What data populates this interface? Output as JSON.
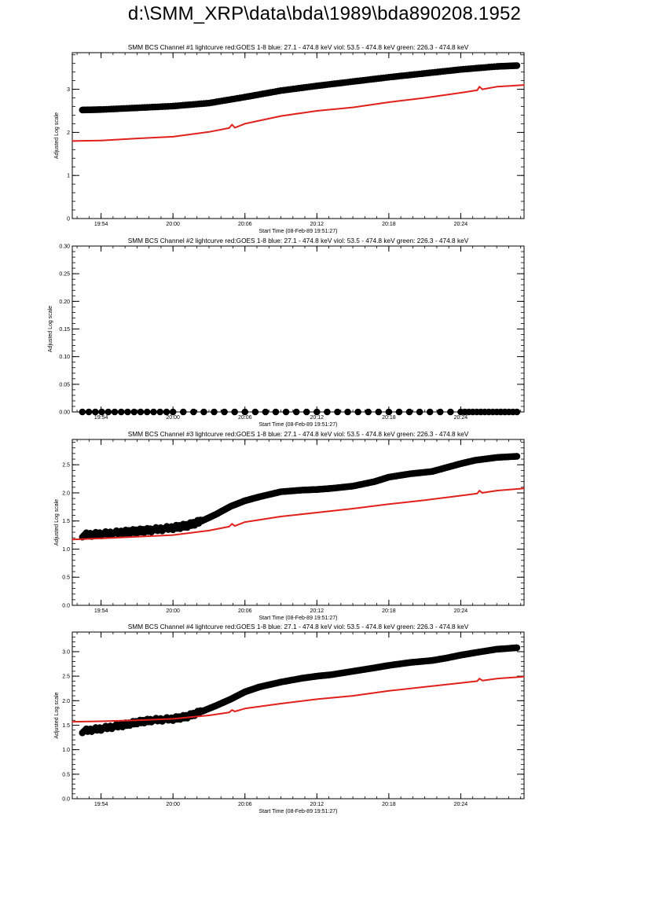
{
  "page": {
    "title": "d:\\SMM_XRP\\data\\bda\\1989\\bda890208.1952"
  },
  "colors": {
    "black_series": "#000000",
    "red_series": "#e0201b",
    "axes": "#000000"
  },
  "chart_data": [
    {
      "type": "scatter",
      "title": "SMM BCS Channel #1 lightcurve  red:GOES 1-8  blue: 27.1 - 474.8 keV  viol: 53.5 - 474.8 keV  green: 226.3 - 474.8 keV",
      "xlabel": "Start Time (08-Feb-89 19:51:27)",
      "ylabel": "Adjusted Log scale",
      "xlim": [
        19.86,
        20.488
      ],
      "ylim": [
        0,
        3.85
      ],
      "xticks": [
        19.9,
        20.0,
        20.1,
        20.2,
        20.3,
        20.4
      ],
      "xticklabels": [
        "19:54",
        "20:00",
        "20:06",
        "20:12",
        "20:18",
        "20:24"
      ],
      "yticks": [
        0,
        1,
        2,
        3
      ],
      "yticklabels": [
        "0",
        "1",
        "2",
        "3"
      ],
      "grid": false,
      "series": [
        {
          "color": "black",
          "style": "thick-dots",
          "x": [
            19.874,
            19.9,
            19.95,
            20.0,
            20.05,
            20.1,
            20.15,
            20.2,
            20.25,
            20.3,
            20.35,
            20.4,
            20.45,
            20.478
          ],
          "y": [
            2.52,
            2.53,
            2.57,
            2.61,
            2.68,
            2.82,
            2.97,
            3.08,
            3.18,
            3.28,
            3.37,
            3.46,
            3.53,
            3.55
          ]
        },
        {
          "color": "red",
          "style": "line",
          "x": [
            19.86,
            19.9,
            19.95,
            20.0,
            20.05,
            20.078,
            20.082,
            20.086,
            20.1,
            20.15,
            20.2,
            20.25,
            20.3,
            20.35,
            20.4,
            20.423,
            20.426,
            20.43,
            20.45,
            20.488
          ],
          "y": [
            1.8,
            1.81,
            1.86,
            1.9,
            2.01,
            2.1,
            2.18,
            2.11,
            2.2,
            2.38,
            2.5,
            2.58,
            2.7,
            2.8,
            2.92,
            2.98,
            3.06,
            3.0,
            3.06,
            3.1
          ]
        }
      ]
    },
    {
      "type": "scatter",
      "title": "SMM BCS Channel #2 lightcurve  red:GOES 1-8  blue: 27.1 - 474.8 keV  viol: 53.5 - 474.8 keV  green: 226.3 - 474.8 keV",
      "xlabel": "Start Time (08-Feb-89 19:51:27)",
      "ylabel": "Adjusted Log scale",
      "xlim": [
        19.86,
        20.488
      ],
      "ylim": [
        0,
        0.3
      ],
      "xticks": [
        19.9,
        20.0,
        20.1,
        20.2,
        20.3,
        20.4
      ],
      "xticklabels": [
        "19:54",
        "20:00",
        "20:06",
        "20:12",
        "20:18",
        "20:24"
      ],
      "yticks": [
        0,
        0.05,
        0.1,
        0.15,
        0.2,
        0.25,
        0.3
      ],
      "yticklabels": [
        "0.00",
        "0.05",
        "0.10",
        "0.15",
        "0.20",
        "0.25",
        "0.30"
      ],
      "grid": false,
      "series": [
        {
          "color": "black",
          "style": "thick-dots",
          "x": [
            19.874,
            20.0,
            20.2,
            20.4,
            20.478
          ],
          "y": [
            0,
            0,
            0,
            0,
            0
          ]
        }
      ]
    },
    {
      "type": "scatter",
      "title": "SMM BCS Channel #3 lightcurve  red:GOES 1-8  blue: 27.1 - 474.8 keV  viol: 53.5 - 474.8 keV  green: 226.3 - 474.8 keV",
      "xlabel": "Start Time (08-Feb-89 19:51:27)",
      "ylabel": "Adjusted Log scale",
      "xlim": [
        19.86,
        20.488
      ],
      "ylim": [
        0,
        2.95
      ],
      "xticks": [
        19.9,
        20.0,
        20.1,
        20.2,
        20.3,
        20.4
      ],
      "xticklabels": [
        "19:54",
        "20:00",
        "20:06",
        "20:12",
        "20:18",
        "20:24"
      ],
      "yticks": [
        0,
        0.5,
        1.0,
        1.5,
        2.0,
        2.5
      ],
      "yticklabels": [
        "0.0",
        "0.5",
        "1.0",
        "1.5",
        "2.0",
        "2.5"
      ],
      "grid": false,
      "series": [
        {
          "color": "black",
          "style": "thick-dots",
          "x": [
            19.874,
            19.9,
            19.93,
            19.95,
            19.97,
            20.0,
            20.02,
            20.04,
            20.06,
            20.08,
            20.1,
            20.12,
            20.15,
            20.18,
            20.2,
            20.22,
            20.25,
            20.28,
            20.3,
            20.33,
            20.36,
            20.38,
            20.4,
            20.42,
            20.45,
            20.478
          ],
          "y": [
            1.25,
            1.27,
            1.3,
            1.32,
            1.34,
            1.38,
            1.42,
            1.5,
            1.62,
            1.76,
            1.86,
            1.93,
            2.02,
            2.05,
            2.06,
            2.08,
            2.12,
            2.2,
            2.28,
            2.34,
            2.38,
            2.45,
            2.52,
            2.58,
            2.63,
            2.65
          ]
        },
        {
          "color": "red",
          "style": "line",
          "x": [
            19.86,
            19.9,
            19.95,
            20.0,
            20.05,
            20.078,
            20.082,
            20.086,
            20.1,
            20.15,
            20.2,
            20.25,
            20.3,
            20.35,
            20.4,
            20.423,
            20.426,
            20.43,
            20.45,
            20.488
          ],
          "y": [
            1.17,
            1.19,
            1.22,
            1.25,
            1.33,
            1.4,
            1.45,
            1.41,
            1.48,
            1.58,
            1.65,
            1.72,
            1.8,
            1.87,
            1.95,
            1.99,
            2.04,
            2.0,
            2.04,
            2.08
          ]
        }
      ]
    },
    {
      "type": "scatter",
      "title": "SMM BCS Channel #4 lightcurve  red:GOES 1-8  blue: 27.1 - 474.8 keV  viol: 53.5 - 474.8 keV  green: 226.3 - 474.8 keV",
      "xlabel": "Start Time (08-Feb-89 19:51:27)",
      "ylabel": "Adjusted Log scale",
      "xlim": [
        19.86,
        20.488
      ],
      "ylim": [
        0,
        3.4
      ],
      "xticks": [
        19.9,
        20.0,
        20.1,
        20.2,
        20.3,
        20.4
      ],
      "xticklabels": [
        "19:54",
        "20:00",
        "20:06",
        "20:12",
        "20:18",
        "20:24"
      ],
      "yticks": [
        0,
        0.5,
        1.0,
        1.5,
        2.0,
        2.5,
        3.0
      ],
      "yticklabels": [
        "0.0",
        "0.5",
        "1.0",
        "1.5",
        "2.0",
        "2.5",
        "3.0"
      ],
      "grid": false,
      "series": [
        {
          "color": "black",
          "style": "thick-dots",
          "x": [
            19.874,
            19.9,
            19.93,
            19.95,
            19.97,
            20.0,
            20.02,
            20.04,
            20.06,
            20.08,
            20.1,
            20.12,
            20.15,
            20.18,
            20.2,
            20.22,
            20.25,
            20.28,
            20.3,
            20.33,
            20.36,
            20.38,
            20.4,
            20.42,
            20.45,
            20.478
          ],
          "y": [
            1.38,
            1.43,
            1.5,
            1.56,
            1.6,
            1.63,
            1.68,
            1.78,
            1.9,
            2.03,
            2.18,
            2.28,
            2.38,
            2.46,
            2.5,
            2.53,
            2.6,
            2.67,
            2.72,
            2.78,
            2.82,
            2.87,
            2.93,
            2.98,
            3.05,
            3.08
          ]
        },
        {
          "color": "red",
          "style": "line",
          "x": [
            19.86,
            19.9,
            19.95,
            20.0,
            20.05,
            20.078,
            20.082,
            20.086,
            20.1,
            20.15,
            20.2,
            20.25,
            20.3,
            20.35,
            20.4,
            20.423,
            20.426,
            20.43,
            20.45,
            20.488
          ],
          "y": [
            1.57,
            1.58,
            1.6,
            1.63,
            1.7,
            1.76,
            1.81,
            1.78,
            1.84,
            1.94,
            2.03,
            2.1,
            2.2,
            2.28,
            2.36,
            2.4,
            2.45,
            2.41,
            2.45,
            2.49
          ]
        }
      ]
    }
  ]
}
